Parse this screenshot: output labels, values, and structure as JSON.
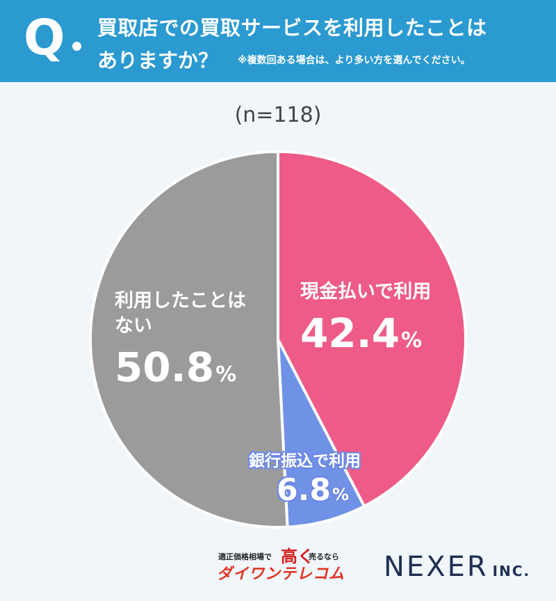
{
  "header": {
    "q_letter": "Q",
    "question_line1": "買取店での買取サービスを利用したことは",
    "question_line2": "ありますか？",
    "note": "※複数回ある場合は、より多い方を選んでください。"
  },
  "sample_size": "(n=118)",
  "chart_data": {
    "type": "pie",
    "title": "",
    "slices": [
      {
        "label": "現金払いで利用",
        "value": 42.4,
        "value_text": "42.4",
        "unit": "%",
        "color": "#ee5b86"
      },
      {
        "label": "銀行振込で利用",
        "value": 6.8,
        "value_text": "6.8",
        "unit": "%",
        "color": "#7092e6"
      },
      {
        "label_line1": "利用したことは",
        "label_line2": "ない",
        "value": 50.8,
        "value_text": "50.8",
        "unit": "%",
        "color": "#9b9b9b"
      }
    ],
    "start": "12 o'clock",
    "direction": "clockwise"
  },
  "logos": {
    "left_tag1": "適正価格相場で",
    "left_tag2": "高く",
    "left_tag3": "売るなら",
    "left_brand": "ダイワンテレコム",
    "right_main": "NEXER",
    "right_suffix": "INC."
  }
}
